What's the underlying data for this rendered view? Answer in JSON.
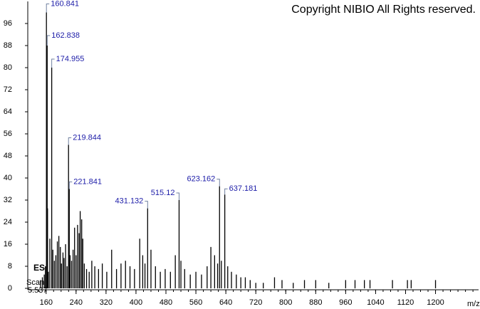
{
  "chart_data": {
    "type": "spectrum",
    "title": "Copyright NIBIO All Rights reserved.",
    "xlabel": "m/z",
    "ion_mode": "ES",
    "scan_label": "Scan",
    "scan_time": "5.537",
    "color": "#000000",
    "label_color": "#1c1ca8",
    "xlim": [
      111,
      1315
    ],
    "ylim": [
      0,
      104
    ],
    "xticks": [
      160,
      240,
      320,
      400,
      480,
      560,
      640,
      720,
      800,
      880,
      960,
      1040,
      1120,
      1200
    ],
    "yticks": [
      0,
      8,
      16,
      24,
      32,
      40,
      48,
      56,
      64,
      72,
      80,
      88,
      96
    ],
    "labeled_peaks": {
      "x": [
        160.841,
        162.838,
        174.955,
        219.844,
        221.841,
        431.132,
        515.12,
        623.162,
        637.181
      ],
      "values": [
        100,
        88,
        80,
        52,
        36,
        29,
        32,
        37,
        34
      ]
    },
    "other_peaks": {
      "x": [
        145,
        150,
        155,
        158,
        163.8,
        166,
        170,
        178,
        182,
        186,
        190,
        194,
        198,
        201,
        205,
        208,
        212,
        216,
        224,
        228,
        232,
        236,
        240,
        244,
        248,
        251,
        255,
        258,
        262,
        268,
        275,
        282,
        290,
        300,
        310,
        322,
        335,
        348,
        360,
        372,
        384,
        396,
        410,
        418,
        424,
        440,
        452,
        465,
        478,
        492,
        505,
        520,
        530,
        545,
        560,
        575,
        590,
        600,
        610,
        618,
        628,
        645,
        655,
        668,
        680,
        692,
        705,
        720,
        740,
        770,
        790,
        820,
        850,
        880,
        915,
        960,
        985,
        1010,
        1025,
        1085,
        1125,
        1135,
        1200
      ],
      "values": [
        3,
        4,
        5,
        8,
        29,
        6,
        18,
        14,
        10,
        12,
        17,
        19,
        15,
        9,
        13,
        11,
        16,
        8,
        12,
        10,
        14,
        22,
        12,
        23,
        20,
        28,
        25,
        18,
        9,
        7,
        6,
        10,
        8,
        7,
        9,
        6,
        14,
        7,
        9,
        10,
        8,
        7,
        18,
        12,
        9,
        14,
        8,
        6,
        7,
        6,
        12,
        10,
        7,
        5,
        6,
        5,
        8,
        15,
        12,
        9,
        10,
        8,
        6,
        5,
        4,
        4,
        3,
        2,
        2,
        4,
        3,
        2,
        3,
        3,
        2,
        3,
        3,
        3,
        3,
        3,
        3,
        3,
        3
      ]
    }
  }
}
